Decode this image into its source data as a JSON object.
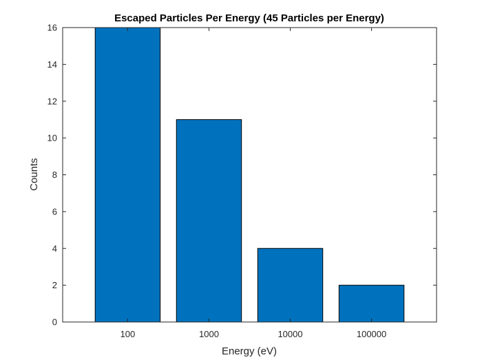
{
  "chart_data": {
    "type": "bar",
    "title": "Escaped Particles Per Energy (45 Particles per Energy)",
    "xlabel": "Energy (eV)",
    "ylabel": "Counts",
    "categories": [
      "100",
      "1000",
      "10000",
      "100000"
    ],
    "values": [
      16,
      11,
      4,
      2
    ],
    "ylim": [
      0,
      16
    ],
    "yticks": [
      "0",
      "2",
      "4",
      "6",
      "8",
      "10",
      "12",
      "14",
      "16"
    ],
    "grid": false,
    "bar_color": "#0072BD",
    "bar_edge_color": "#000000"
  }
}
